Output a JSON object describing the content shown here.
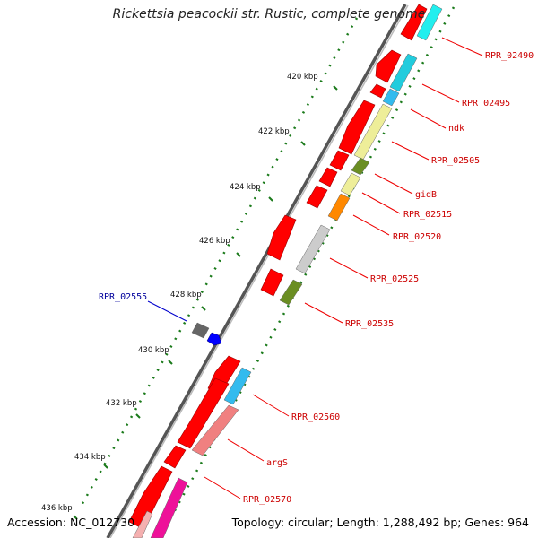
{
  "title": "Rickettsia peacockii str. Rustic, complete genome",
  "accession_text": "Accession: NC_012730",
  "info_text": "Topology: circular; Length: 1,288,492 bp; Genes: 964",
  "ticks": [
    "420 kbp",
    "422 kbp",
    "424 kbp",
    "426 kbp",
    "428 kbp",
    "430 kbp",
    "432 kbp",
    "434 kbp",
    "436 kbp"
  ],
  "gene_labels": [
    "RPR_02490",
    "RPR_02495",
    "ndk",
    "RPR_02505",
    "gidB",
    "RPR_02515",
    "RPR_02520",
    "RPR_02525",
    "RPR_02535",
    "RPR_02555",
    "RPR_02560",
    "argS",
    "RPR_02570"
  ],
  "colors": {
    "forward_cds": "#ff0000",
    "backbone": "#777777",
    "tick_dots": "#1a7a1a",
    "label_red": "#cc0000",
    "label_blue": "#00009c",
    "cyan": "#22ddee",
    "light_blue": "#33bbee",
    "khaki": "#eeee99",
    "olive": "#6b8e23",
    "orange": "#ff8800",
    "silver": "#cccccc",
    "salmon": "#f08080",
    "magenta": "#ee1199"
  }
}
